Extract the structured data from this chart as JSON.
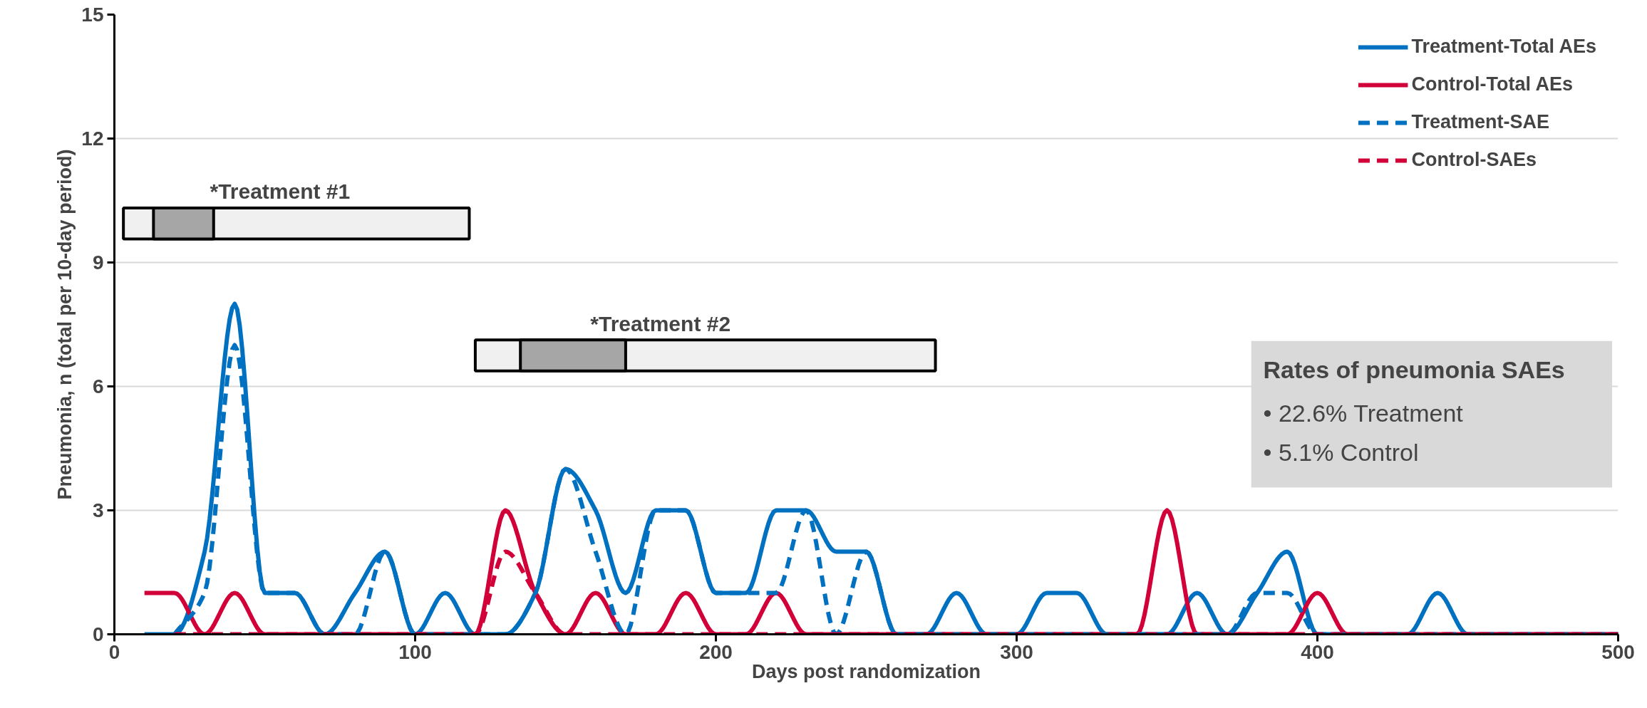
{
  "chart_data": {
    "type": "line",
    "xlabel": "Days post randomization",
    "ylabel": "Pneumonia, n (total per 10-day period)",
    "x": [
      10,
      20,
      30,
      40,
      50,
      60,
      70,
      80,
      90,
      100,
      110,
      120,
      130,
      140,
      150,
      160,
      170,
      180,
      190,
      200,
      210,
      220,
      230,
      240,
      250,
      260,
      270,
      280,
      290,
      300,
      310,
      320,
      330,
      340,
      350,
      360,
      370,
      380,
      390,
      400,
      410,
      420,
      430,
      440,
      450,
      460,
      470,
      480,
      490,
      500
    ],
    "series": [
      {
        "name": "Treatment-Total AEs",
        "color": "#0070c0",
        "line_style": "solid",
        "values": [
          0,
          0,
          2,
          8,
          1,
          1,
          0,
          1,
          2,
          0,
          1,
          0,
          0,
          1,
          4,
          3,
          1,
          3,
          3,
          1,
          1,
          3,
          3,
          2,
          2,
          0,
          0,
          1,
          0,
          0,
          1,
          1,
          0,
          0,
          0,
          1,
          0,
          1,
          2,
          0,
          0,
          0,
          0,
          1,
          0,
          0,
          0,
          0,
          0,
          0
        ]
      },
      {
        "name": "Control-Total AEs",
        "color": "#d20038",
        "line_style": "solid",
        "values": [
          1,
          1,
          0,
          1,
          0,
          0,
          0,
          0,
          0,
          0,
          0,
          0,
          3,
          1,
          0,
          1,
          0,
          0,
          1,
          0,
          0,
          1,
          0,
          0,
          0,
          0,
          0,
          0,
          0,
          0,
          0,
          0,
          0,
          0,
          3,
          0,
          0,
          0,
          0,
          1,
          0,
          0,
          0,
          0,
          0,
          0,
          0,
          0,
          0,
          0
        ]
      },
      {
        "name": "Treatment-SAE",
        "color": "#0070c0",
        "line_style": "dashed",
        "values": [
          null,
          0,
          1,
          7,
          1,
          1,
          0,
          0,
          2,
          0,
          0,
          0,
          0,
          1,
          4,
          2,
          0,
          3,
          3,
          1,
          1,
          1,
          3,
          0,
          2,
          0,
          0,
          0,
          0,
          0,
          0,
          0,
          0,
          0,
          0,
          0,
          0,
          1,
          1,
          0,
          0,
          0,
          0,
          0,
          0,
          0,
          0,
          0,
          0,
          0
        ]
      },
      {
        "name": "Control-SAEs",
        "color": "#d20038",
        "line_style": "dashed",
        "values": [
          null,
          0,
          0,
          0,
          0,
          0,
          0,
          0,
          0,
          0,
          0,
          0,
          2,
          1,
          0,
          0,
          0,
          0,
          0,
          0,
          0,
          0,
          0,
          0,
          0,
          0,
          0,
          0,
          0,
          0,
          0,
          0,
          0,
          0,
          0,
          0,
          0,
          0,
          0,
          0,
          0,
          0,
          0,
          0,
          0,
          0,
          0,
          0,
          0,
          0
        ]
      }
    ],
    "xlim": [
      0,
      500
    ],
    "xticks": [
      0,
      100,
      200,
      300,
      400,
      500
    ],
    "ylim": [
      0,
      15
    ],
    "yticks": [
      0,
      3,
      6,
      9,
      12,
      15
    ],
    "grid": "y",
    "legend": "top right",
    "bands": [
      {
        "axis": "x",
        "from": 3,
        "to": 118,
        "label": "*Treatment #1",
        "color": "#f0f0f0"
      },
      {
        "axis": "x",
        "from": 13,
        "to": 33,
        "color": "#a6a6a6"
      },
      {
        "axis": "x",
        "from": 120,
        "to": 273,
        "label": "*Treatment #2",
        "color": "#f0f0f0"
      },
      {
        "axis": "x",
        "from": 135,
        "to": 170,
        "color": "#a6a6a6"
      }
    ],
    "annotations": [
      "Rates of pneumonia SAEs",
      "•  22.6% Treatment",
      "•  5.1% Control"
    ]
  }
}
